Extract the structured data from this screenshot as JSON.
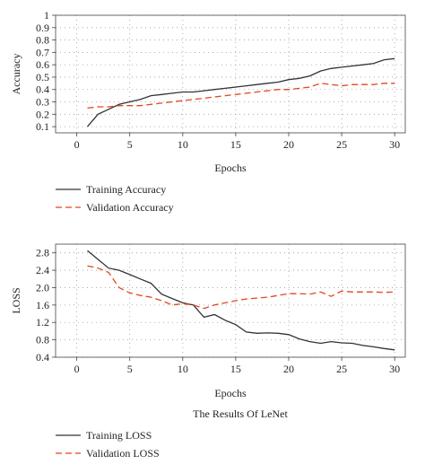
{
  "caption": "The Results Of LeNet",
  "chart_data": [
    {
      "type": "line",
      "title": "",
      "xlabel": "Epochs",
      "ylabel": "Accuracy",
      "xlim": [
        -2,
        31
      ],
      "ylim": [
        0.05,
        1.0
      ],
      "xticks": [
        0,
        5,
        10,
        15,
        20,
        25,
        30
      ],
      "yticks": [
        0.1,
        0.2,
        0.3,
        0.4,
        0.5,
        0.6,
        0.7,
        0.8,
        0.9,
        1.0
      ],
      "grid": true,
      "legend_position": "below",
      "x": [
        1,
        2,
        3,
        4,
        5,
        6,
        7,
        8,
        9,
        10,
        11,
        12,
        13,
        14,
        15,
        16,
        17,
        18,
        19,
        20,
        21,
        22,
        23,
        24,
        25,
        26,
        27,
        28,
        29,
        30
      ],
      "series": [
        {
          "name": "Training Accuracy",
          "color": "#333333",
          "style": "solid",
          "values": [
            0.1,
            0.2,
            0.24,
            0.28,
            0.3,
            0.32,
            0.35,
            0.36,
            0.37,
            0.38,
            0.38,
            0.39,
            0.4,
            0.41,
            0.42,
            0.43,
            0.44,
            0.45,
            0.46,
            0.48,
            0.49,
            0.51,
            0.55,
            0.57,
            0.58,
            0.59,
            0.6,
            0.61,
            0.64,
            0.65
          ]
        },
        {
          "name": "Validation Accuracy",
          "color": "#e2461f",
          "style": "dashed",
          "values": [
            0.25,
            0.26,
            0.26,
            0.27,
            0.27,
            0.27,
            0.28,
            0.29,
            0.3,
            0.31,
            0.32,
            0.33,
            0.34,
            0.35,
            0.36,
            0.37,
            0.38,
            0.39,
            0.4,
            0.4,
            0.41,
            0.42,
            0.45,
            0.44,
            0.43,
            0.44,
            0.44,
            0.44,
            0.45,
            0.45
          ]
        }
      ]
    },
    {
      "type": "line",
      "title": "",
      "xlabel": "Epochs",
      "ylabel": "LOSS",
      "xlim": [
        -2,
        31
      ],
      "ylim": [
        0.4,
        3.0
      ],
      "xticks": [
        0,
        5,
        10,
        15,
        20,
        25,
        30
      ],
      "yticks": [
        0.4,
        0.8,
        1.2,
        1.6,
        2.0,
        2.4,
        2.8
      ],
      "yticklabels": [
        "0.4",
        "0.8",
        "1.2",
        "1.6",
        "2.0",
        "2.4",
        "2.8"
      ],
      "grid": true,
      "legend_position": "below",
      "x": [
        1,
        2,
        3,
        4,
        5,
        6,
        7,
        8,
        9,
        10,
        11,
        12,
        13,
        14,
        15,
        16,
        17,
        18,
        19,
        20,
        21,
        22,
        23,
        24,
        25,
        26,
        27,
        28,
        29,
        30
      ],
      "series": [
        {
          "name": "Training LOSS",
          "color": "#333333",
          "style": "solid",
          "values": [
            2.85,
            2.65,
            2.45,
            2.4,
            2.3,
            2.2,
            2.1,
            1.85,
            1.75,
            1.65,
            1.6,
            1.32,
            1.38,
            1.25,
            1.15,
            0.98,
            0.95,
            0.96,
            0.95,
            0.92,
            0.82,
            0.76,
            0.72,
            0.76,
            0.73,
            0.72,
            0.67,
            0.64,
            0.6,
            0.57
          ]
        },
        {
          "name": "Validation LOSS",
          "color": "#e2461f",
          "style": "dashed",
          "values": [
            2.5,
            2.45,
            2.35,
            2.0,
            1.88,
            1.82,
            1.78,
            1.7,
            1.6,
            1.63,
            1.6,
            1.52,
            1.6,
            1.65,
            1.7,
            1.74,
            1.76,
            1.78,
            1.82,
            1.86,
            1.86,
            1.85,
            1.9,
            1.8,
            1.92,
            1.9,
            1.9,
            1.9,
            1.89,
            1.9
          ]
        }
      ]
    }
  ]
}
